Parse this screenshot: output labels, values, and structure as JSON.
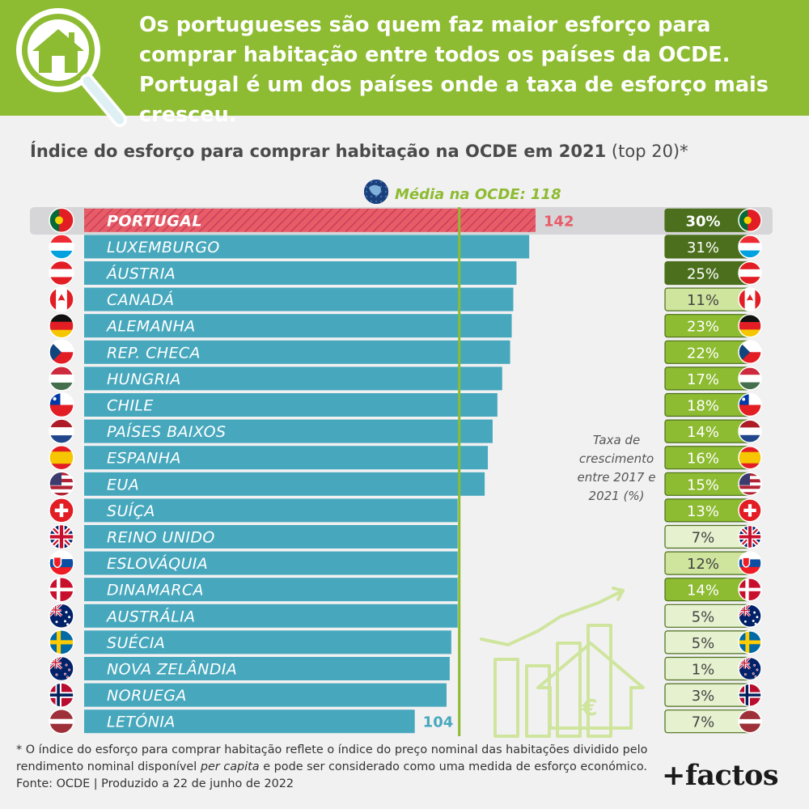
{
  "headline": "Os portugueses são quem faz maior esforço para comprar habitação entre todos os países da OCDE. Portugal é um dos países onde a taxa de esforço mais cresceu.",
  "chart_title": {
    "bold": "Índice do esforço para comprar habitação na OCDE em 2021",
    "normal": "(top 20)*"
  },
  "average_label": "Média na OCDE: 118",
  "growth_label": "Taxa de crescimento entre 2017 e 2021 (%)",
  "footnote": {
    "part1": "* O índice do esforço para comprar habitação reflete o índice do preço nominal das habitações dividido pelo rendimento nominal disponível ",
    "italic": "per capita",
    "part2": " e pode ser considerado como uma medida de esforço económico. Fonte: OCDE | Produzido a 22 de junho de 2022"
  },
  "brand": "+factos",
  "colors": {
    "header": "#8dbb31",
    "bar": "#47a8bd",
    "highlight_bar": "#e85c68",
    "average_line": "#8dbb31",
    "growth_dark": "#4b6f1c",
    "growth_mid": "#8dbb31",
    "growth_light": "#cfe59d",
    "growth_pale": "#e6f1cf"
  },
  "chart_data": [
    {
      "type": "bar",
      "orientation": "horizontal",
      "title": "Índice do esforço para comprar habitação na OCDE em 2021 (top 20)*",
      "categories": [
        "PORTUGAL",
        "LUXEMBURGO",
        "ÁUSTRIA",
        "CANADÁ",
        "ALEMANHA",
        "REP. CHECA",
        "HUNGRIA",
        "CHILE",
        "PAÍSES BAIXOS",
        "ESPANHA",
        "EUA",
        "SUÍÇA",
        "REINO UNIDO",
        "ESLOVÁQUIA",
        "DINAMARCA",
        "AUSTRÁLIA",
        "SUÉCIA",
        "NOVA ZELÂNDIA",
        "NORUEGA",
        "LETÓNIA"
      ],
      "values": [
        142,
        140,
        136,
        135,
        134.5,
        134,
        131.5,
        130,
        128.5,
        127,
        126,
        117.5,
        117.5,
        117.5,
        117.5,
        117.5,
        115.5,
        115,
        114,
        104
      ],
      "value_labels": [
        "142",
        "",
        "",
        "",
        "",
        "",
        "",
        "",
        "",
        "",
        "",
        "",
        "",
        "",
        "",
        "",
        "",
        "",
        "",
        "104"
      ],
      "average": 118,
      "highlight": "PORTUGAL",
      "xlim": [
        0,
        142
      ]
    },
    {
      "type": "table",
      "title": "Taxa de crescimento entre 2017 e 2021 (%)",
      "categories": [
        "PORTUGAL",
        "LUXEMBURGO",
        "ÁUSTRIA",
        "CANADÁ",
        "ALEMANHA",
        "REP. CHECA",
        "HUNGRIA",
        "CHILE",
        "PAÍSES BAIXOS",
        "ESPANHA",
        "EUA",
        "SUÍÇA",
        "REINO UNIDO",
        "ESLOVÁQUIA",
        "DINAMARCA",
        "AUSTRÁLIA",
        "SUÉCIA",
        "NOVA ZELÂNDIA",
        "NORUEGA",
        "LETÓNIA"
      ],
      "values": [
        30,
        31,
        25,
        11,
        23,
        22,
        17,
        18,
        14,
        16,
        15,
        13,
        7,
        12,
        14,
        5,
        5,
        1,
        3,
        7
      ],
      "labels": [
        "30%",
        "31%",
        "25%",
        "11%",
        "23%",
        "22%",
        "17%",
        "18%",
        "14%",
        "16%",
        "15%",
        "13%",
        "7%",
        "12%",
        "14%",
        "5%",
        "5%",
        "1%",
        "3%",
        "7%"
      ]
    }
  ],
  "flags": [
    "portugal-flag-icon",
    "luxembourg-flag-icon",
    "austria-flag-icon",
    "canada-flag-icon",
    "germany-flag-icon",
    "czechia-flag-icon",
    "hungary-flag-icon",
    "chile-flag-icon",
    "netherlands-flag-icon",
    "spain-flag-icon",
    "usa-flag-icon",
    "switzerland-flag-icon",
    "uk-flag-icon",
    "slovakia-flag-icon",
    "denmark-flag-icon",
    "australia-flag-icon",
    "sweden-flag-icon",
    "new-zealand-flag-icon",
    "norway-flag-icon",
    "latvia-flag-icon"
  ]
}
